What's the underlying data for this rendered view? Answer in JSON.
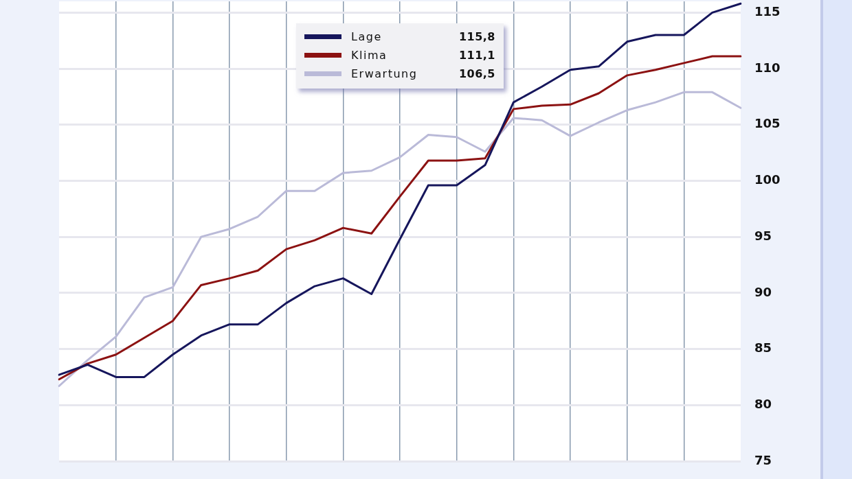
{
  "chart_data": {
    "type": "line",
    "categories": [
      null,
      null,
      null,
      null,
      null,
      null,
      null,
      null,
      null,
      null,
      null,
      null,
      null,
      null,
      null,
      null,
      null,
      null,
      null,
      null,
      null,
      null,
      null,
      null,
      null
    ],
    "series": [
      {
        "name": "Lage",
        "color": "#16165c",
        "values": [
          82.7,
          83.6,
          82.5,
          82.5,
          84.5,
          86.2,
          87.2,
          87.2,
          89.1,
          90.6,
          91.3,
          89.9,
          94.8,
          99.6,
          99.6,
          101.4,
          107.0,
          108.4,
          109.9,
          110.2,
          112.4,
          113.0,
          113.0,
          115.0,
          115.8
        ]
      },
      {
        "name": "Klima",
        "color": "#8c1212",
        "values": [
          82.3,
          83.7,
          84.5,
          86.0,
          87.5,
          90.7,
          91.3,
          92.0,
          93.9,
          94.7,
          95.8,
          95.3,
          98.6,
          101.8,
          101.8,
          102.0,
          106.4,
          106.7,
          106.8,
          107.8,
          109.4,
          109.9,
          110.5,
          111.1,
          111.1
        ]
      },
      {
        "name": "Erwartung",
        "color": "#babad8",
        "values": [
          81.7,
          84.0,
          86.1,
          89.6,
          90.5,
          95.0,
          95.7,
          96.8,
          99.1,
          99.1,
          100.7,
          100.9,
          102.1,
          104.1,
          103.9,
          102.6,
          105.6,
          105.4,
          104.0,
          105.2,
          106.3,
          107.0,
          107.9,
          107.9,
          106.5
        ]
      }
    ],
    "annotations": [
      "115,8",
      "111,1",
      "106,5"
    ],
    "ylim": [
      75,
      116
    ],
    "yticks": [
      75,
      80,
      85,
      90,
      95,
      100,
      105,
      110,
      115
    ],
    "grid": true,
    "legend": "top",
    "tick_labels": "y",
    "marker": "none"
  }
}
